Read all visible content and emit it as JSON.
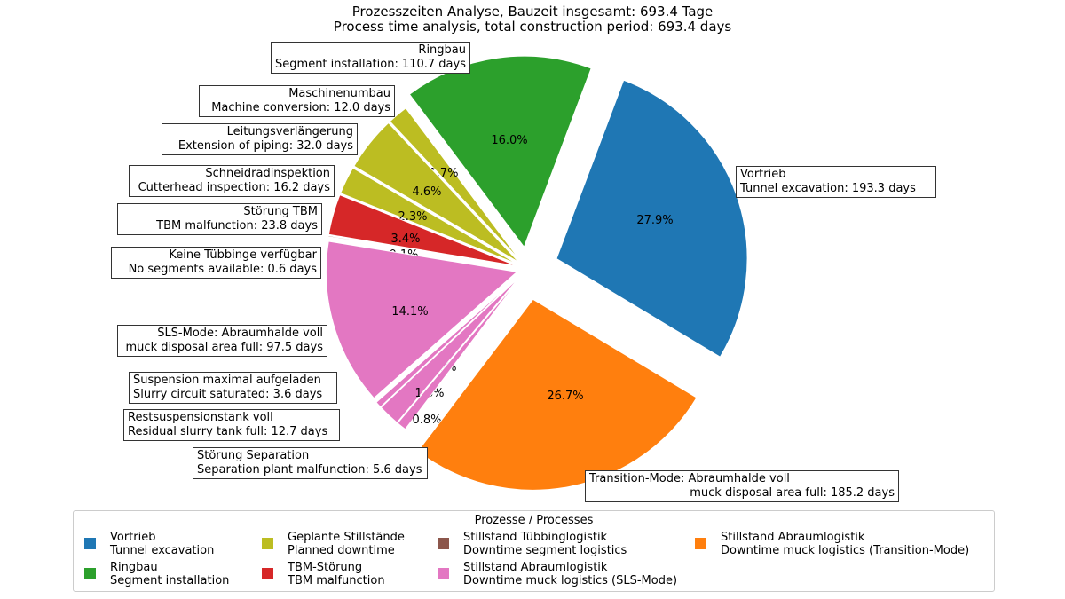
{
  "chart_data": {
    "type": "pie",
    "title": [
      "Prozesszeiten Analyse, Bauzeit insgesamt: 693.4 Tage",
      "Process time analysis, total construction period: 693.4 days"
    ],
    "slices": [
      {
        "label_de": "Vortrieb",
        "label_en": "Tunnel excavation: 193.3 days",
        "days": 193.3,
        "percent": "27.9%",
        "color": "#1f77b4"
      },
      {
        "label_de": "Ringbau",
        "label_en": "Segment installation: 110.7 days",
        "days": 110.7,
        "percent": "16.0%",
        "color": "#2ca02c"
      },
      {
        "label_de": "Maschinenumbau",
        "label_en": "Machine conversion: 12.0 days",
        "days": 12.0,
        "percent": "1.7%",
        "color": "#bcbd22"
      },
      {
        "label_de": "Leitungsverlängerung",
        "label_en": "Extension of piping: 32.0 days",
        "days": 32.0,
        "percent": "4.6%",
        "color": "#bcbd22"
      },
      {
        "label_de": "Schneidradinspektion",
        "label_en": "Cutterhead inspection: 16.2 days",
        "days": 16.2,
        "percent": "2.3%",
        "color": "#bcbd22"
      },
      {
        "label_de": "Störung TBM",
        "label_en": "TBM malfunction: 23.8 days",
        "days": 23.8,
        "percent": "3.4%",
        "color": "#d62728"
      },
      {
        "label_de": "Keine Tübbinge verfügbar",
        "label_en": "No segments available: 0.6 days",
        "days": 0.6,
        "percent": "0.1%",
        "color": "#8c564b"
      },
      {
        "label_de": "SLS-Mode: Abraumhalde voll",
        "label_en": "muck disposal area full: 97.5 days",
        "days": 97.5,
        "percent": "14.1%",
        "color": "#e377c2"
      },
      {
        "label_de": "Suspension maximal aufgeladen",
        "label_en": "Slurry circuit saturated: 3.6 days",
        "days": 3.6,
        "percent": "0.5%",
        "color": "#e377c2"
      },
      {
        "label_de": "Restsuspensionstank voll",
        "label_en": "Residual slurry tank full: 12.7 days",
        "days": 12.7,
        "percent": "1.8%",
        "color": "#e377c2"
      },
      {
        "label_de": "Störung Separation",
        "label_en": "Separation plant malfunction: 5.6 days",
        "days": 5.6,
        "percent": "0.8%",
        "color": "#e377c2"
      },
      {
        "label_de": "Transition-Mode: Abraumhalde voll",
        "label_en": "muck disposal area full: 185.2 days",
        "days": 185.2,
        "percent": "26.7%",
        "color": "#ff7f0e"
      }
    ],
    "legend": {
      "title": "Prozesse / Processes",
      "placement": "bottom",
      "items": [
        {
          "de": "Vortrieb",
          "en": "Tunnel excavation",
          "color": "#1f77b4"
        },
        {
          "de": "Ringbau",
          "en": "Segment installation",
          "color": "#2ca02c"
        },
        {
          "de": "Geplante Stillstände",
          "en": "Planned downtime",
          "color": "#bcbd22"
        },
        {
          "de": "TBM-Störung",
          "en": "TBM malfunction",
          "color": "#d62728"
        },
        {
          "de": "Stillstand Tübbinglogistik",
          "en": "Downtime segment logistics",
          "color": "#8c564b"
        },
        {
          "de": "Stillstand Abraumlogistik",
          "en": "Downtime muck logistics (SLS-Mode)",
          "color": "#e377c2"
        },
        {
          "de": "Stillstand Abraumlogistik",
          "en": "Downtime muck logistics (Transition-Mode)",
          "color": "#ff7f0e"
        }
      ]
    }
  }
}
